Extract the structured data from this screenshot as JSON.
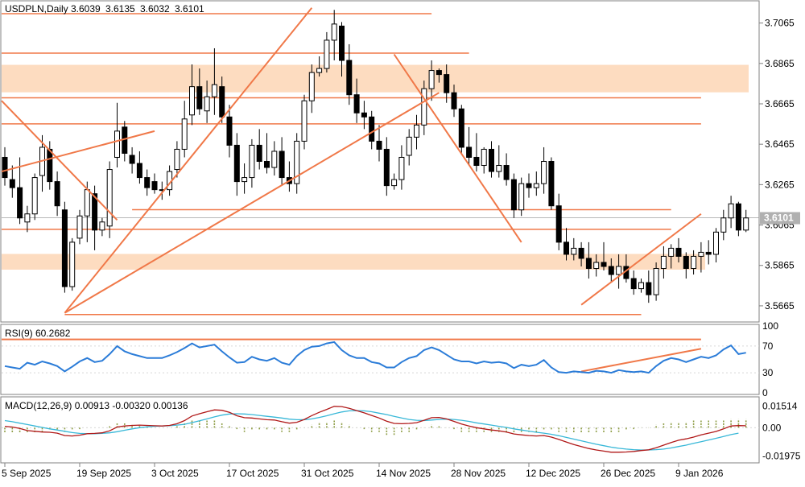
{
  "header": {
    "symbol": "USDPLN,Daily",
    "open": "3.6039",
    "high": "3.6135",
    "low": "3.6032",
    "close": "3.6101"
  },
  "colors": {
    "up_fill": "#ffffff",
    "candle_stroke": "#000000",
    "down_fill": "#000000",
    "line_orange": "#f07848",
    "zone_fill": "#fddcc0",
    "rsi_line": "#2b7cd8",
    "macd_main": "#b01818",
    "macd_signal": "#38b8d8",
    "macd_hist": "#8a9a40",
    "grid": "#d8d8d8",
    "frame": "#808080",
    "price_label_bg": "#b0b0b0"
  },
  "chart_data": [
    {
      "type": "candlestick",
      "title": "USDPLN,Daily",
      "ohlc_legend": [
        "3.6039",
        "3.6135",
        "3.6032",
        "3.6101"
      ],
      "y_ticks": [
        "3.7065",
        "3.6865",
        "3.6665",
        "3.6465",
        "3.6265",
        "3.6065",
        "3.5865",
        "3.5665"
      ],
      "y_tick_values": [
        3.7065,
        3.6865,
        3.6665,
        3.6465,
        3.6265,
        3.6065,
        3.5865,
        3.5665
      ],
      "ylim": [
        3.5585,
        3.7175
      ],
      "x_ticks": [
        "5 Sep 2025",
        "19 Sep 2025",
        "3 Oct 2025",
        "17 Oct 2025",
        "31 Oct 2025",
        "14 Nov 2025",
        "28 Nov 2025",
        "12 Dec 2025",
        "26 Dec 2025",
        "9 Jan 2026"
      ],
      "x_tick_index": [
        0,
        10,
        20,
        30,
        40,
        50,
        60,
        70,
        80,
        90
      ],
      "current_price": "3.6101",
      "candles": [
        [
          3.64,
          3.645,
          3.626,
          3.63
        ],
        [
          3.629,
          3.636,
          3.62,
          3.625
        ],
        [
          3.625,
          3.64,
          3.607,
          3.61
        ],
        [
          3.608,
          3.616,
          3.603,
          3.612
        ],
        [
          3.612,
          3.632,
          3.609,
          3.63
        ],
        [
          3.631,
          3.651,
          3.623,
          3.645
        ],
        [
          3.644,
          3.648,
          3.624,
          3.628
        ],
        [
          3.628,
          3.633,
          3.611,
          3.616
        ],
        [
          3.614,
          3.618,
          3.573,
          3.576
        ],
        [
          3.576,
          3.6,
          3.574,
          3.598
        ],
        [
          3.6,
          3.614,
          3.597,
          3.611
        ],
        [
          3.611,
          3.628,
          3.598,
          3.624
        ],
        [
          3.622,
          3.626,
          3.594,
          3.604
        ],
        [
          3.604,
          3.61,
          3.601,
          3.608
        ],
        [
          3.606,
          3.638,
          3.6,
          3.634
        ],
        [
          3.64,
          3.667,
          3.635,
          3.653
        ],
        [
          3.655,
          3.658,
          3.638,
          3.642
        ],
        [
          3.641,
          3.645,
          3.632,
          3.637
        ],
        [
          3.637,
          3.643,
          3.627,
          3.63
        ],
        [
          3.63,
          3.634,
          3.621,
          3.625
        ],
        [
          3.628,
          3.632,
          3.622,
          3.624
        ],
        [
          3.624,
          3.628,
          3.619,
          3.624
        ],
        [
          3.624,
          3.636,
          3.621,
          3.633
        ],
        [
          3.634,
          3.648,
          3.63,
          3.644
        ],
        [
          3.644,
          3.668,
          3.64,
          3.659
        ],
        [
          3.661,
          3.686,
          3.656,
          3.675
        ],
        [
          3.675,
          3.684,
          3.661,
          3.664
        ],
        [
          3.663,
          3.678,
          3.657,
          3.67
        ],
        [
          3.67,
          3.694,
          3.661,
          3.676
        ],
        [
          3.675,
          3.68,
          3.657,
          3.66
        ],
        [
          3.66,
          3.666,
          3.64,
          3.646
        ],
        [
          3.646,
          3.652,
          3.621,
          3.628
        ],
        [
          3.628,
          3.637,
          3.622,
          3.63
        ],
        [
          3.63,
          3.649,
          3.625,
          3.646
        ],
        [
          3.646,
          3.654,
          3.634,
          3.638
        ],
        [
          3.638,
          3.652,
          3.632,
          3.635
        ],
        [
          3.635,
          3.648,
          3.631,
          3.643
        ],
        [
          3.643,
          3.65,
          3.626,
          3.63
        ],
        [
          3.63,
          3.638,
          3.623,
          3.627
        ],
        [
          3.627,
          3.652,
          3.622,
          3.648
        ],
        [
          3.648,
          3.671,
          3.644,
          3.668
        ],
        [
          3.668,
          3.686,
          3.662,
          3.682
        ],
        [
          3.682,
          3.69,
          3.68,
          3.684
        ],
        [
          3.684,
          3.702,
          3.682,
          3.698
        ],
        [
          3.698,
          3.713,
          3.688,
          3.706
        ],
        [
          3.705,
          3.707,
          3.68,
          3.688
        ],
        [
          3.688,
          3.696,
          3.666,
          3.671
        ],
        [
          3.671,
          3.679,
          3.657,
          3.662
        ],
        [
          3.662,
          3.668,
          3.654,
          3.66
        ],
        [
          3.66,
          3.663,
          3.644,
          3.648
        ],
        [
          3.648,
          3.656,
          3.638,
          3.644
        ],
        [
          3.644,
          3.65,
          3.621,
          3.626
        ],
        [
          3.626,
          3.632,
          3.624,
          3.629
        ],
        [
          3.629,
          3.646,
          3.624,
          3.64
        ],
        [
          3.641,
          3.654,
          3.636,
          3.65
        ],
        [
          3.65,
          3.661,
          3.644,
          3.656
        ],
        [
          3.656,
          3.678,
          3.651,
          3.674
        ],
        [
          3.674,
          3.688,
          3.668,
          3.683
        ],
        [
          3.683,
          3.684,
          3.677,
          3.681
        ],
        [
          3.681,
          3.686,
          3.667,
          3.672
        ],
        [
          3.672,
          3.676,
          3.66,
          3.664
        ],
        [
          3.664,
          3.666,
          3.642,
          3.645
        ],
        [
          3.645,
          3.655,
          3.636,
          3.64
        ],
        [
          3.64,
          3.652,
          3.633,
          3.636
        ],
        [
          3.636,
          3.645,
          3.632,
          3.644
        ],
        [
          3.644,
          3.648,
          3.63,
          3.633
        ],
        [
          3.633,
          3.646,
          3.63,
          3.636
        ],
        [
          3.636,
          3.642,
          3.626,
          3.629
        ],
        [
          3.629,
          3.632,
          3.61,
          3.614
        ],
        [
          3.614,
          3.63,
          3.611,
          3.627
        ],
        [
          3.627,
          3.632,
          3.62,
          3.625
        ],
        [
          3.625,
          3.633,
          3.621,
          3.627
        ],
        [
          3.627,
          3.645,
          3.622,
          3.638
        ],
        [
          3.638,
          3.64,
          3.614,
          3.616
        ],
        [
          3.616,
          3.622,
          3.594,
          3.598
        ],
        [
          3.598,
          3.605,
          3.589,
          3.592
        ],
        [
          3.592,
          3.6,
          3.589,
          3.595
        ],
        [
          3.595,
          3.598,
          3.586,
          3.59
        ],
        [
          3.59,
          3.598,
          3.58,
          3.585
        ],
        [
          3.585,
          3.592,
          3.581,
          3.588
        ],
        [
          3.588,
          3.598,
          3.584,
          3.586
        ],
        [
          3.586,
          3.59,
          3.578,
          3.582
        ],
        [
          3.582,
          3.592,
          3.575,
          3.586
        ],
        [
          3.586,
          3.592,
          3.578,
          3.58
        ],
        [
          3.58,
          3.584,
          3.572,
          3.575
        ],
        [
          3.575,
          3.58,
          3.573,
          3.578
        ],
        [
          3.578,
          3.584,
          3.568,
          3.572
        ],
        [
          3.572,
          3.588,
          3.569,
          3.585
        ],
        [
          3.585,
          3.596,
          3.58,
          3.591
        ],
        [
          3.591,
          3.597,
          3.585,
          3.595
        ],
        [
          3.595,
          3.6,
          3.588,
          3.591
        ],
        [
          3.591,
          3.593,
          3.58,
          3.585
        ],
        [
          3.585,
          3.594,
          3.582,
          3.591
        ],
        [
          3.591,
          3.598,
          3.583,
          3.593
        ],
        [
          3.593,
          3.599,
          3.587,
          3.592
        ],
        [
          3.592,
          3.605,
          3.588,
          3.603
        ],
        [
          3.603,
          3.614,
          3.599,
          3.61
        ],
        [
          3.61,
          3.621,
          3.605,
          3.617
        ],
        [
          3.617,
          3.618,
          3.601,
          3.604
        ],
        [
          3.604,
          3.614,
          3.603,
          3.61
        ]
      ],
      "zones": [
        {
          "from": 3.6722,
          "to": 3.6858
        },
        {
          "from": 3.5844,
          "to": 3.5922
        }
      ],
      "hlines": [
        {
          "y": 3.7111,
          "from": 0,
          "to": 57
        },
        {
          "y": 3.6916,
          "from": 0,
          "to": 62
        },
        {
          "y": 3.6695,
          "from": 0,
          "to": 93
        },
        {
          "y": 3.6566,
          "from": 0,
          "to": 93
        },
        {
          "y": 3.6141,
          "from": 17,
          "to": 89
        },
        {
          "y": 3.6044,
          "from": 0,
          "to": 89
        },
        {
          "y": 3.5622,
          "from": 8,
          "to": 85
        }
      ],
      "trendlines": [
        {
          "x1": 0,
          "y1": 3.668,
          "x2": 15,
          "y2": 3.609
        },
        {
          "x1": 0,
          "y1": 3.633,
          "x2": 20,
          "y2": 3.653
        },
        {
          "x1": 8,
          "y1": 3.563,
          "x2": 41,
          "y2": 3.714
        },
        {
          "x1": 8,
          "y1": 3.563,
          "x2": 58,
          "y2": 3.672
        },
        {
          "x1": 52,
          "y1": 3.691,
          "x2": 69,
          "y2": 3.598
        },
        {
          "x1": 77,
          "y1": 3.567,
          "x2": 93,
          "y2": 3.612
        }
      ]
    },
    {
      "type": "line",
      "title": "RSI(9) 60.2682",
      "y_ticks": [
        "100",
        "70",
        "30",
        "0"
      ],
      "y_tick_values": [
        100,
        70,
        30,
        0
      ],
      "ylim": [
        0,
        100
      ],
      "levels": [
        30,
        70
      ],
      "values": [
        40,
        38,
        36,
        45,
        42,
        47,
        44,
        40,
        32,
        39,
        47,
        52,
        46,
        48,
        58,
        70,
        62,
        58,
        55,
        52,
        52,
        52,
        56,
        61,
        67,
        74,
        68,
        70,
        72,
        62,
        53,
        45,
        46,
        54,
        50,
        48,
        52,
        45,
        42,
        55,
        64,
        69,
        70,
        74,
        76,
        64,
        56,
        52,
        52,
        46,
        44,
        38,
        38,
        46,
        52,
        55,
        64,
        68,
        64,
        57,
        50,
        47,
        47,
        44,
        47,
        45,
        46,
        44,
        37,
        42,
        40,
        42,
        49,
        38,
        31,
        30,
        32,
        31,
        30,
        33,
        32,
        30,
        34,
        32,
        31,
        32,
        30,
        40,
        48,
        52,
        50,
        46,
        50,
        54,
        52,
        56,
        65,
        71,
        58,
        60
      ],
      "trendlines": [
        {
          "x1": 0,
          "y1": 80,
          "x2": 93,
          "y2": 80
        },
        {
          "x1": 77,
          "y1": 32,
          "x2": 93,
          "y2": 66
        }
      ]
    },
    {
      "type": "bar+line",
      "title": "MACD(12,26,9) 0.00913 -0.00320 0.00136",
      "y_ticks": [
        "0.01514",
        "0.00",
        "-0.01975"
      ],
      "y_tick_values": [
        0.01514,
        0.0,
        -0.01975
      ],
      "ylim": [
        -0.0235,
        0.0205
      ],
      "series": [
        {
          "values": [
            0.001,
            0.0005,
            -0.0005,
            -0.002,
            -0.0025,
            -0.003,
            -0.0032,
            -0.0038,
            -0.0055,
            -0.0058,
            -0.0052,
            -0.0042,
            -0.004,
            -0.0036,
            -0.0022,
            0.0005,
            0.0012,
            0.0016,
            0.0018,
            0.0016,
            0.0014,
            0.0012,
            0.0016,
            0.0028,
            0.005,
            0.0082,
            0.0098,
            0.0112,
            0.0125,
            0.0122,
            0.0108,
            0.0084,
            0.007,
            0.0068,
            0.0062,
            0.0056,
            0.0054,
            0.0042,
            0.0032,
            0.0038,
            0.0058,
            0.0085,
            0.0108,
            0.0128,
            0.015,
            0.0148,
            0.0136,
            0.012,
            0.0104,
            0.0086,
            0.0068,
            0.0046,
            0.003,
            0.0028,
            0.003,
            0.0035,
            0.0052,
            0.007,
            0.0072,
            0.0062,
            0.0044,
            0.0026,
            0.0012,
            0.0,
            -0.0008,
            -0.0016,
            -0.0022,
            -0.003,
            -0.0044,
            -0.005,
            -0.0055,
            -0.0058,
            -0.0055,
            -0.0066,
            -0.0082,
            -0.01,
            -0.0118,
            -0.0132,
            -0.0146,
            -0.0156,
            -0.0164,
            -0.0172,
            -0.0172,
            -0.017,
            -0.0166,
            -0.016,
            -0.0155,
            -0.014,
            -0.0122,
            -0.0104,
            -0.0088,
            -0.0078,
            -0.0066,
            -0.005,
            -0.0038,
            -0.0026,
            -0.0008,
            0.0012,
            0.0015,
            0.0014
          ]
        },
        {
          "values": [
            0.005,
            0.0042,
            0.0032,
            0.0022,
            0.0012,
            0.0002,
            -0.0008,
            -0.0016,
            -0.0025,
            -0.0034,
            -0.004,
            -0.0042,
            -0.0042,
            -0.004,
            -0.0036,
            -0.0028,
            -0.0018,
            -0.0008,
            0.0,
            0.0006,
            0.001,
            0.0012,
            0.0014,
            0.0018,
            0.0024,
            0.0036,
            0.0048,
            0.0062,
            0.0076,
            0.0088,
            0.0096,
            0.0098,
            0.0096,
            0.0092,
            0.0086,
            0.008,
            0.0074,
            0.0068,
            0.006,
            0.0056,
            0.0056,
            0.0062,
            0.0072,
            0.0084,
            0.0098,
            0.011,
            0.0118,
            0.012,
            0.0118,
            0.0112,
            0.0102,
            0.0092,
            0.008,
            0.0068,
            0.0058,
            0.0052,
            0.005,
            0.0054,
            0.0058,
            0.006,
            0.0058,
            0.0052,
            0.0044,
            0.0034,
            0.0026,
            0.0018,
            0.001,
            0.0002,
            -0.0008,
            -0.0016,
            -0.0024,
            -0.0032,
            -0.0038,
            -0.0046,
            -0.0056,
            -0.0068,
            -0.008,
            -0.0092,
            -0.0104,
            -0.0116,
            -0.0126,
            -0.0136,
            -0.0144,
            -0.015,
            -0.0154,
            -0.0156,
            -0.0156,
            -0.0154,
            -0.015,
            -0.0142,
            -0.0132,
            -0.0122,
            -0.011,
            -0.0098,
            -0.0086,
            -0.0074,
            -0.0062,
            -0.0048,
            -0.0038
          ]
        },
        {
          "values": [
            -0.004,
            -0.004,
            -0.004,
            -0.004,
            -0.004,
            -0.003,
            -0.002,
            -0.002,
            -0.003,
            -0.002,
            -0.001,
            0.0,
            0.0,
            0.0,
            0.001,
            0.003,
            0.003,
            0.002,
            0.002,
            0.001,
            0.0,
            0.0,
            0.0,
            0.001,
            0.003,
            0.005,
            0.005,
            0.005,
            0.005,
            0.003,
            0.001,
            -0.001,
            -0.003,
            -0.002,
            -0.002,
            -0.002,
            -0.002,
            -0.003,
            -0.003,
            -0.002,
            0.0,
            0.002,
            0.004,
            0.004,
            0.005,
            0.004,
            0.002,
            0.0,
            -0.001,
            -0.003,
            -0.003,
            -0.005,
            -0.005,
            -0.004,
            -0.003,
            -0.002,
            0.0,
            0.002,
            0.001,
            0.0,
            -0.001,
            -0.003,
            -0.003,
            -0.003,
            -0.003,
            -0.003,
            -0.003,
            -0.003,
            -0.004,
            -0.003,
            -0.003,
            -0.003,
            -0.002,
            -0.002,
            -0.003,
            -0.003,
            -0.004,
            -0.004,
            -0.004,
            -0.004,
            -0.004,
            -0.004,
            -0.003,
            -0.002,
            -0.001,
            0.0,
            0.0,
            0.002,
            0.003,
            0.004,
            0.004,
            0.004,
            0.005,
            0.005,
            0.005,
            0.005,
            0.005,
            0.006,
            0.006,
            0.006
          ]
        }
      ]
    }
  ]
}
